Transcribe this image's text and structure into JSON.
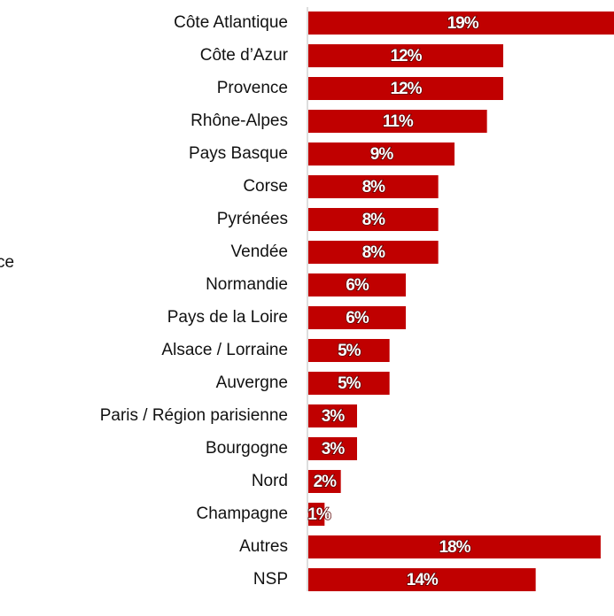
{
  "chart_data": {
    "type": "bar",
    "orientation": "horizontal",
    "annotation": "ce",
    "categories": [
      "Côte Atlantique",
      "Côte d’Azur",
      "Provence",
      "Rhône-Alpes",
      "Pays Basque",
      "Corse",
      "Pyrénées",
      "Vendée",
      "Normandie",
      "Pays de la Loire",
      "Alsace / Lorraine",
      "Auvergne",
      "Paris / Région parisienne",
      "Bourgogne",
      "Nord",
      "Champagne",
      "Autres",
      "NSP"
    ],
    "values": [
      19,
      12,
      12,
      11,
      9,
      8,
      8,
      8,
      6,
      6,
      5,
      5,
      3,
      3,
      2,
      1,
      18,
      14
    ],
    "value_labels": [
      "19%",
      "12%",
      "12%",
      "11%",
      "9%",
      "8%",
      "8%",
      "8%",
      "6%",
      "6%",
      "5%",
      "5%",
      "3%",
      "3%",
      "2%",
      "1%",
      "18%",
      "14%"
    ],
    "color": "#c00000"
  }
}
